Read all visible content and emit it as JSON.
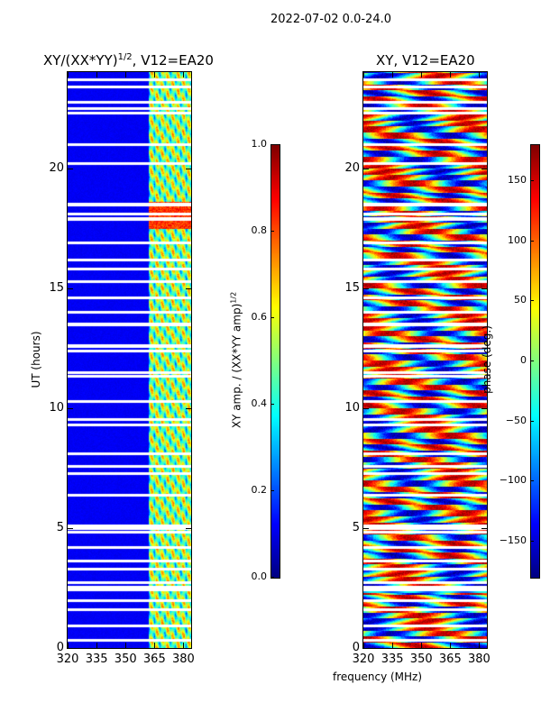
{
  "suptitle": "2022-07-02 0.0-24.0",
  "chart_data": [
    {
      "type": "heatmap",
      "title": "XY/(XX*YY)",
      "title_exponent": "1/2",
      "title_suffix": ", V12=EA20",
      "xlabel": "",
      "ylabel": "UT (hours)",
      "xlim": [
        320,
        384
      ],
      "ylim": [
        0,
        24
      ],
      "xticks": [
        "320",
        "335",
        "350",
        "365",
        "380"
      ],
      "xtick_values": [
        320,
        335,
        350,
        365,
        380
      ],
      "yticks": [
        "0",
        "5",
        "10",
        "15",
        "20"
      ],
      "ytick_values": [
        0,
        5,
        10,
        15,
        20
      ],
      "colormap": "jet",
      "colorbar": {
        "label": "XY amp. / (XX*YY amp)",
        "label_exponent": "1/2",
        "range": [
          0,
          1
        ],
        "ticks": [
          "0.0",
          "0.2",
          "0.4",
          "0.6",
          "0.8",
          "1.0"
        ],
        "tick_values": [
          0,
          0.2,
          0.4,
          0.6,
          0.8,
          1.0
        ]
      },
      "summary": {
        "background_level": 0.1,
        "band_start_mhz": 362,
        "band_level": 0.5,
        "flare_hours": [
          17.5,
          18.6
        ],
        "flare_level": 0.9
      }
    },
    {
      "type": "heatmap",
      "title": "XY, V12=EA20",
      "xlabel": "frequency (MHz)",
      "ylabel": "",
      "xlim": [
        320,
        384
      ],
      "ylim": [
        0,
        24
      ],
      "xticks": [
        "320",
        "335",
        "350",
        "365",
        "380"
      ],
      "xtick_values": [
        320,
        335,
        350,
        365,
        380
      ],
      "yticks": [
        "0",
        "5",
        "10",
        "15",
        "20"
      ],
      "ytick_values": [
        0,
        5,
        10,
        15,
        20
      ],
      "colormap": "jet",
      "colorbar": {
        "label": "phase (deg.)",
        "range": [
          -180,
          180
        ],
        "ticks": [
          "−150",
          "−100",
          "−50",
          "0",
          "50",
          "100",
          "150"
        ],
        "tick_values": [
          -150,
          -100,
          -50,
          0,
          50,
          100,
          150
        ]
      }
    }
  ],
  "flagged_hours": [
    0.35,
    0.95,
    1.6,
    2.0,
    2.45,
    2.55,
    2.75,
    3.3,
    3.65,
    4.2,
    4.85,
    5.0,
    5.1,
    6.4,
    7.3,
    7.6,
    8.1,
    9.3,
    9.55,
    10.3,
    11.35,
    11.5,
    12.4,
    12.6,
    13.5,
    14.0,
    14.6,
    15.3,
    15.8,
    16.2,
    16.9,
    17.9,
    18.1,
    18.5,
    20.2,
    21.0,
    22.3,
    22.5,
    22.75,
    23.4,
    23.7
  ]
}
